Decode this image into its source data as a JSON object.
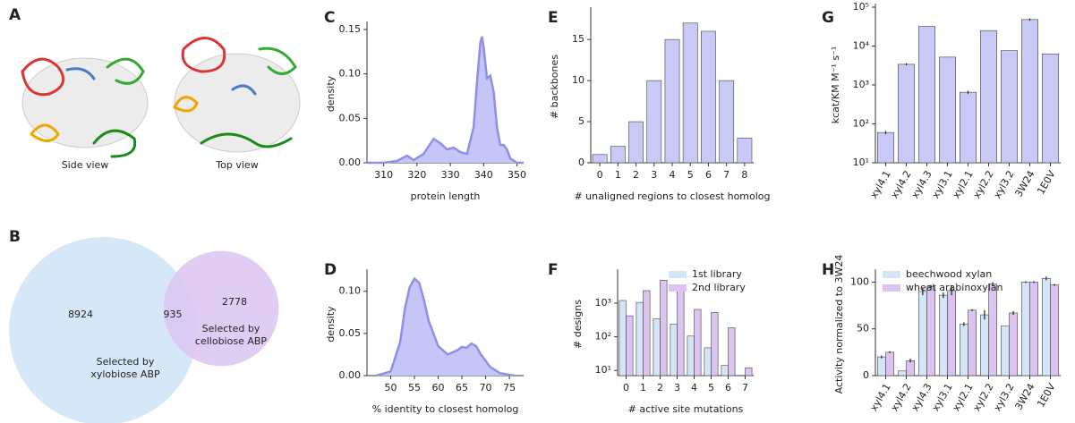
{
  "panel_a": {
    "label": "A",
    "captions": [
      "Side view",
      "Top view"
    ]
  },
  "chart_data": [
    {
      "type": "venn",
      "label": "B",
      "sets": [
        {
          "name": [
            "Selected by",
            "xylobiose ABP"
          ],
          "color": "#d6e8f8"
        },
        {
          "name": [
            "Selected by",
            "cellobiose ABP"
          ],
          "color": "#dcc4f2"
        }
      ],
      "values": [
        8924,
        935,
        2778
      ]
    },
    {
      "type": "area",
      "label": "C",
      "xlabel": "protein length",
      "ylabel": "density",
      "color": "#c5c5f7",
      "line_color": "#8f8fe6",
      "x": [
        305,
        310,
        314,
        317,
        319,
        322,
        325,
        327,
        329,
        331,
        333,
        335,
        337,
        338,
        339,
        339.5,
        340,
        341,
        342,
        343,
        344,
        345,
        346,
        347,
        348,
        350,
        352
      ],
      "values": [
        0,
        0,
        0.002,
        0.008,
        0.003,
        0.01,
        0.027,
        0.022,
        0.015,
        0.017,
        0.012,
        0.01,
        0.04,
        0.09,
        0.135,
        0.142,
        0.13,
        0.095,
        0.098,
        0.08,
        0.04,
        0.02,
        0.02,
        0.015,
        0.005,
        0,
        0
      ],
      "xlim": [
        305,
        352
      ],
      "xticks": [
        310,
        320,
        330,
        340,
        350
      ],
      "ylim": [
        0,
        0.155
      ],
      "yticks": [
        {
          "value": 0,
          "label": "0.00"
        },
        {
          "value": 0.05,
          "label": "0.05"
        },
        {
          "value": 0.1,
          "label": "0.10"
        },
        {
          "value": 0.15,
          "label": "0.15"
        }
      ]
    },
    {
      "type": "area",
      "label": "D",
      "xlabel": "% identity to closest homolog",
      "ylabel": "density",
      "color": "#c5c5f7",
      "line_color": "#8f8fe6",
      "x": [
        47,
        50,
        52,
        53,
        54,
        55,
        56,
        57,
        58,
        60,
        62,
        64,
        65,
        66,
        67,
        68,
        69,
        71,
        73,
        76
      ],
      "values": [
        0,
        0.005,
        0.04,
        0.08,
        0.105,
        0.115,
        0.11,
        0.09,
        0.065,
        0.035,
        0.025,
        0.03,
        0.034,
        0.033,
        0.038,
        0.035,
        0.025,
        0.01,
        0.003,
        0
      ],
      "xlim": [
        45,
        78
      ],
      "xticks": [
        50,
        55,
        60,
        65,
        70,
        75
      ],
      "ylim": [
        0,
        0.122
      ],
      "yticks": [
        {
          "value": 0,
          "label": "0.00"
        },
        {
          "value": 0.05,
          "label": "0.05"
        },
        {
          "value": 0.1,
          "label": "0.10"
        }
      ]
    },
    {
      "type": "bar",
      "label": "E",
      "xlabel": "# unaligned regions to closest homolog",
      "ylabel": "# backbones",
      "categories": [
        "0",
        "1",
        "2",
        "3",
        "4",
        "5",
        "6",
        "7",
        "8"
      ],
      "series": [
        {
          "color": "#c9c9f5",
          "values": [
            1,
            2,
            5,
            10,
            15,
            17,
            16,
            10,
            3
          ]
        }
      ],
      "ylim": [
        0,
        18.5
      ],
      "yticks": [
        0,
        5,
        10,
        15
      ]
    },
    {
      "type": "bar",
      "label": "F",
      "xlabel": "# active site mutations",
      "ylabel": "# designs",
      "log_y": true,
      "legend": "upper right",
      "categories": [
        "0",
        "1",
        "2",
        "3",
        "4",
        "5",
        "6",
        "7"
      ],
      "series": [
        {
          "name": "1st library",
          "color": "#d4e6f5",
          "values": [
            1200,
            1050,
            340,
            240,
            105,
            47,
            14,
            null
          ]
        },
        {
          "name": "2nd library",
          "color": "#dcc4f0",
          "values": [
            420,
            2350,
            4800,
            3500,
            650,
            530,
            185,
            12
          ]
        }
      ],
      "ylim": [
        7,
        8000
      ],
      "yticks": [
        {
          "value": 10,
          "label": "10¹"
        },
        {
          "value": 100,
          "label": "10²"
        },
        {
          "value": 1000,
          "label": "10³"
        }
      ]
    },
    {
      "type": "bar",
      "label": "G",
      "ylabel": "kcat/KM M⁻¹ s⁻¹",
      "log_y": true,
      "categories": [
        "xyl4.1",
        "xyl4.2",
        "xyl4.3",
        "xyl3.1",
        "xyl2.1",
        "xyl2.2",
        "xyl3.2",
        "3W24",
        "1E0V"
      ],
      "series": [
        {
          "color": "#c9c9f5",
          "values": [
            60,
            3400,
            32000,
            5200,
            650,
            25000,
            7600,
            48000,
            6300
          ],
          "errors": [
            6,
            200,
            null,
            null,
            60,
            null,
            null,
            3000,
            null
          ]
        }
      ],
      "ylim": [
        10,
        100000
      ],
      "yticks": [
        {
          "value": 10,
          "label": "10¹"
        },
        {
          "value": 100,
          "label": "10²"
        },
        {
          "value": 1000,
          "label": "10³"
        },
        {
          "value": 10000,
          "label": "10⁴"
        },
        {
          "value": 100000,
          "label": "10⁵"
        }
      ]
    },
    {
      "type": "bar",
      "label": "H",
      "ylabel": "Activity normalized to 3W24",
      "legend": "upper left",
      "categories": [
        "xyl4.1",
        "xyl4.2",
        "xyl4.3",
        "xyl3.1",
        "xyl2.1",
        "xyl2.2",
        "xyl3.2",
        "3W24",
        "1E0V"
      ],
      "series": [
        {
          "name": "beechwood xylan",
          "color": "#d4e6f5",
          "values": [
            20,
            5,
            90,
            86,
            55,
            65,
            53,
            100,
            104
          ],
          "errors": [
            1.5,
            null,
            4,
            3,
            2,
            5,
            null,
            1,
            2
          ]
        },
        {
          "name": "wheat arabinoxylan",
          "color": "#dcc4f0",
          "values": [
            25,
            16,
            95,
            91,
            70,
            98,
            67,
            100,
            97
          ],
          "errors": [
            1,
            2,
            2,
            5,
            1,
            2,
            2,
            1,
            1
          ]
        }
      ],
      "ylim": [
        0,
        110
      ],
      "yticks": [
        0,
        50,
        100
      ]
    }
  ]
}
